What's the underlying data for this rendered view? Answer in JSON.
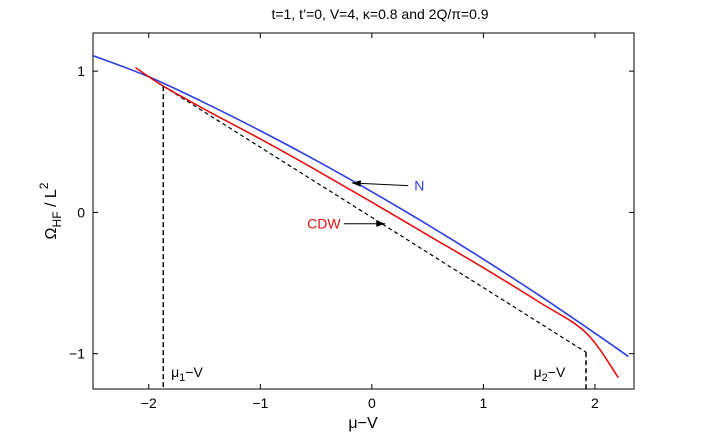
{
  "chart_data": {
    "type": "line",
    "title": "t=1, t’=0, V=4, κ=0.8 and 2Q/π=0.9",
    "xlabel": "μ−V",
    "ylabel": "Ω",
    "ylabel_sub": "HF",
    "ylabel_rest": " / L",
    "ylabel_sup": "2",
    "xlim": [
      -2.5,
      2.35
    ],
    "ylim": [
      -1.25,
      1.27
    ],
    "xticks": [
      -2,
      -1,
      0,
      1,
      2
    ],
    "xtick_labels": [
      "−2",
      "−1",
      "0",
      "1",
      "2"
    ],
    "yticks": [
      -1,
      0,
      1
    ],
    "ytick_labels": [
      "−1",
      "0",
      "1"
    ],
    "grid": false,
    "series": [
      {
        "name": "N",
        "color": "#2b3fe0",
        "style": "solid",
        "x": [
          -2.5,
          -2.0,
          -1.5,
          -1.0,
          -0.5,
          0.0,
          0.5,
          1.0,
          1.5,
          2.0,
          2.3
        ],
        "y": [
          1.11,
          0.96,
          0.776,
          0.578,
          0.368,
          0.146,
          -0.087,
          -0.331,
          -0.587,
          -0.855,
          -1.02
        ]
      },
      {
        "name": "CDW",
        "color": "#e01010",
        "style": "solid",
        "x": [
          -2.12,
          -1.87,
          -1.5,
          -1.0,
          -0.5,
          0.0,
          0.5,
          1.0,
          1.5,
          1.92,
          2.21
        ],
        "y": [
          1.025,
          0.894,
          0.73,
          0.52,
          0.3,
          0.072,
          -0.16,
          -0.392,
          -0.635,
          -0.852,
          -1.17
        ]
      },
      {
        "name": "",
        "color": "#000000",
        "style": "dashed",
        "x": [
          -1.87,
          1.92
        ],
        "y": [
          0.894,
          -0.99
        ]
      }
    ],
    "vlines": [
      {
        "x": -1.87,
        "y_top": 0.894
      },
      {
        "x": 1.92,
        "y_top": -0.99
      }
    ],
    "annotations": [
      {
        "id": "N",
        "text": "N",
        "color": "#2b3fe0",
        "text_x": 0.38,
        "text_y": 0.19,
        "arrow_to_x": -0.18,
        "arrow_to_y": 0.208
      },
      {
        "id": "CDW",
        "text": "CDW",
        "color": "#e01010",
        "text_x": -0.43,
        "text_y": -0.08,
        "arrow_to_x": 0.12,
        "arrow_to_y": -0.08
      },
      {
        "id": "mu1",
        "text_main": "μ",
        "text_sub": "1",
        "text_rest": "−V",
        "color": "#000000",
        "text_x": -1.8,
        "text_y": -1.13
      },
      {
        "id": "mu2",
        "text_main": "μ",
        "text_sub": "2",
        "text_rest": "−V",
        "color": "#000000",
        "text_x": 1.45,
        "text_y": -1.13
      }
    ]
  }
}
